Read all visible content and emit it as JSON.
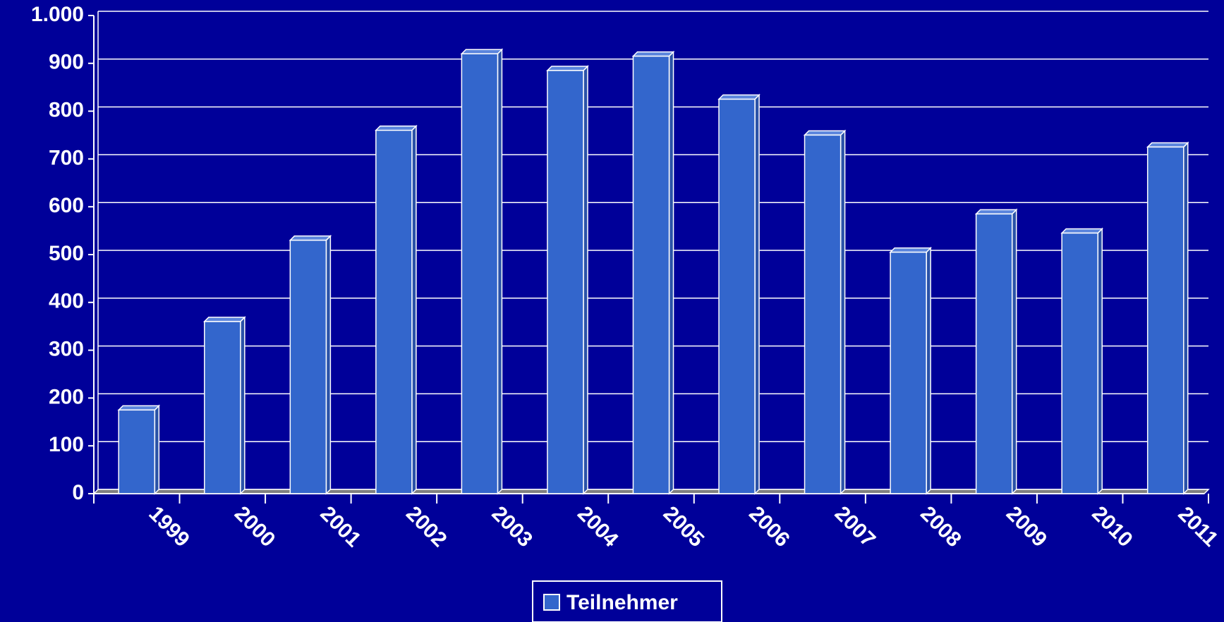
{
  "chart_data": {
    "type": "bar",
    "categories": [
      "1999",
      "2000",
      "2001",
      "2002",
      "2003",
      "2004",
      "2005",
      "2006",
      "2007",
      "2008",
      "2009",
      "2010",
      "2011"
    ],
    "series": [
      {
        "name": "Teilnehmer",
        "color": "#3366cc",
        "values": [
          175,
          360,
          530,
          760,
          920,
          885,
          915,
          825,
          750,
          505,
          585,
          545,
          725
        ]
      }
    ],
    "ylim": [
      0,
      1000
    ],
    "yticks": [
      0,
      100,
      200,
      300,
      400,
      500,
      600,
      700,
      800,
      900,
      {
        "value": 1000,
        "label": "1.000"
      }
    ],
    "grid": true,
    "legend": "bottom"
  }
}
